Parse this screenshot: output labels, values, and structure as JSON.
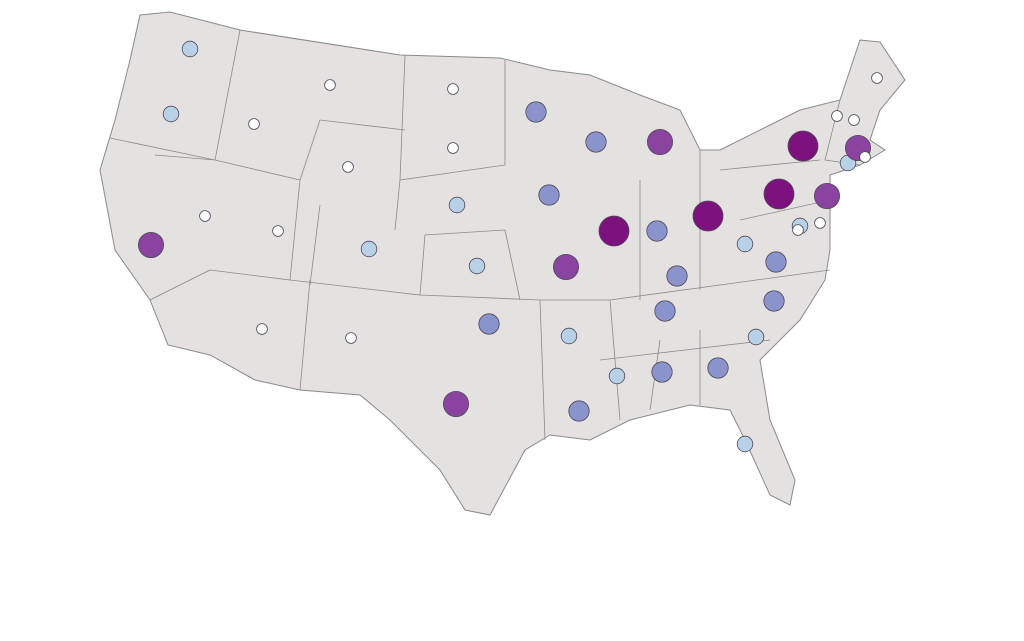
{
  "map": {
    "sizes": [
      2,
      2,
      4,
      1,
      1,
      1,
      1,
      1,
      2,
      1,
      1,
      1,
      1,
      2,
      2,
      3,
      4,
      3,
      3,
      4,
      2,
      3,
      3,
      5,
      4,
      3,
      5,
      3,
      3,
      2,
      3,
      3,
      2,
      2,
      3,
      3,
      2,
      5,
      5,
      4,
      2,
      1,
      1,
      2,
      4,
      1,
      1,
      1,
      1
    ],
    "palette": [
      "#ffffff",
      "#b9d1e7",
      "#8a93cb",
      "#8a449f",
      "#7d117e"
    ]
  }
}
